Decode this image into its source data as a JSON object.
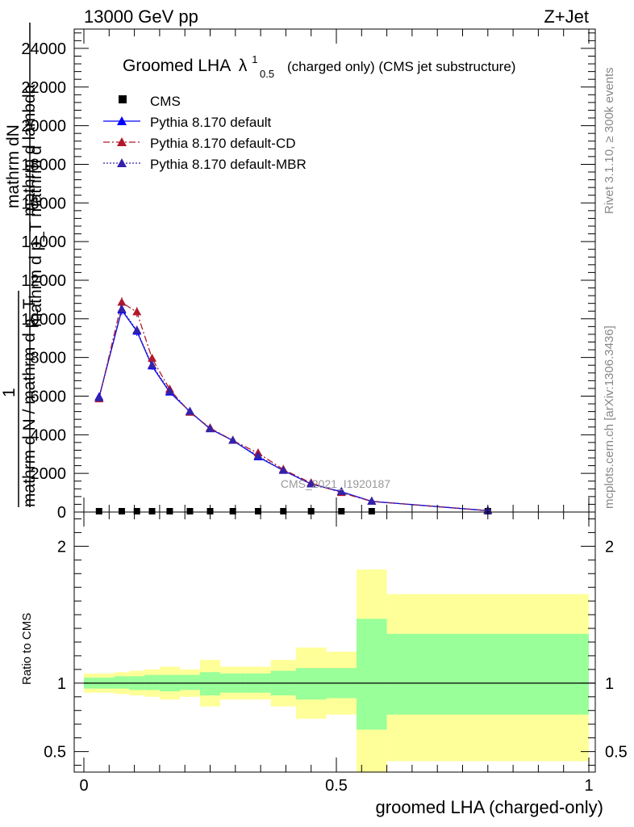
{
  "header": {
    "energy": "13000 GeV pp",
    "process": "Z+Jet"
  },
  "side_labels": {
    "rivet": "Rivet 3.1.10, ≥ 300k events",
    "mcplots": "mcplots.cern.ch [arXiv:1306.3436]"
  },
  "chart_data": [
    {
      "type": "line",
      "title_main": "Groomed LHA",
      "title_symbol": "λ",
      "title_sup": "1",
      "title_sub": "0.5",
      "title_rest": "(charged only) (CMS jet substructure)",
      "ylabel_numerator": "mathrm dN",
      "ylabel_numerator_overlay": "mathrm d lambda",
      "ylabel_denominator_a": "mathrm d p_T mathrm d",
      "ylabel_denominator_b": "1",
      "ylabel_denominator_c": "mathrm d N / mathrm d p_T",
      "watermark": "CMS_2021_I1920187",
      "xlim": [
        0,
        1
      ],
      "ylim": [
        0,
        25000
      ],
      "yticks": [
        0,
        2000,
        4000,
        6000,
        8000,
        10000,
        12000,
        14000,
        16000,
        18000,
        20000,
        22000,
        24000
      ],
      "ytick_labels": [
        "0",
        "2000",
        "4000",
        "6000",
        "8000",
        "10000",
        "12000",
        "14000",
        "16000",
        "18000",
        "20000",
        "22000",
        "24000"
      ],
      "bin_edges": [
        0,
        0.06,
        0.09,
        0.12,
        0.15,
        0.19,
        0.23,
        0.27,
        0.32,
        0.37,
        0.42,
        0.48,
        0.54,
        0.6,
        1.0
      ],
      "x": [
        0.03,
        0.075,
        0.105,
        0.135,
        0.17,
        0.21,
        0.25,
        0.295,
        0.345,
        0.395,
        0.45,
        0.51,
        0.57,
        0.8
      ],
      "series": [
        {
          "name": "CMS",
          "color": "#000000",
          "marker": "square",
          "values": [
            0,
            0,
            0,
            0,
            0,
            0,
            0,
            0,
            0,
            0,
            0,
            0,
            0,
            0
          ]
        },
        {
          "name": "Pythia 8.170 default",
          "color": "#0000ff",
          "line": "solid",
          "marker": "triangle",
          "values": [
            5950,
            10450,
            9350,
            7550,
            6200,
            5200,
            4300,
            3700,
            2850,
            2150,
            1450,
            1050,
            550,
            70
          ]
        },
        {
          "name": "Pythia 8.170 default-CD",
          "color": "#b2182b",
          "line": "dashdot",
          "marker": "triangle",
          "values": [
            5850,
            10850,
            10350,
            7950,
            6350,
            5150,
            4350,
            3700,
            3050,
            2200,
            1500,
            1000,
            550,
            70
          ]
        },
        {
          "name": "Pythia 8.170 default-MBR",
          "color": "#3322aa",
          "line": "dotted",
          "marker": "triangle",
          "values": [
            5900,
            10500,
            9400,
            7600,
            6250,
            5200,
            4300,
            3700,
            2900,
            2150,
            1450,
            1050,
            550,
            70
          ]
        }
      ]
    },
    {
      "type": "area",
      "ylabel": "Ratio to CMS",
      "xlabel": "groomed LHA (charged-only)",
      "xlim": [
        0,
        1
      ],
      "ylim": [
        0.35,
        2.25
      ],
      "xticks": [
        0,
        0.5,
        1
      ],
      "xtick_labels": [
        "0",
        "0.5",
        "1"
      ],
      "yticks": [
        0.5,
        1,
        2
      ],
      "ytick_labels": [
        "0.5",
        "1",
        "2"
      ],
      "bin_edges": [
        0,
        0.06,
        0.09,
        0.12,
        0.15,
        0.19,
        0.23,
        0.27,
        0.32,
        0.37,
        0.42,
        0.48,
        0.54,
        0.6,
        1.0
      ],
      "band_green": {
        "color": "#99ff99",
        "lo": [
          0.96,
          0.96,
          0.95,
          0.95,
          0.94,
          0.95,
          0.91,
          0.93,
          0.93,
          0.91,
          0.88,
          0.89,
          0.66,
          0.77
        ],
        "hi": [
          1.04,
          1.05,
          1.05,
          1.06,
          1.06,
          1.06,
          1.08,
          1.07,
          1.07,
          1.09,
          1.11,
          1.11,
          1.47,
          1.36
        ]
      },
      "band_yellow": {
        "color": "#ffff99",
        "lo": [
          0.93,
          0.92,
          0.91,
          0.9,
          0.88,
          0.9,
          0.83,
          0.88,
          0.88,
          0.83,
          0.74,
          0.77,
          0.35,
          0.43
        ],
        "hi": [
          1.07,
          1.08,
          1.09,
          1.1,
          1.12,
          1.1,
          1.17,
          1.12,
          1.12,
          1.17,
          1.26,
          1.23,
          1.83,
          1.65
        ]
      },
      "reference_line": 1
    }
  ]
}
